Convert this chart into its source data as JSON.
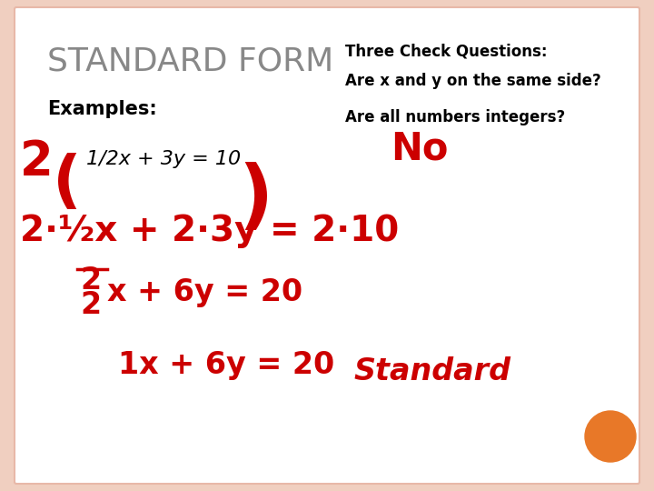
{
  "bg_color": "#ffffff",
  "border_color": "#e8b8a8",
  "slide_bg": "#f0cfc0",
  "title_text": "STANDARD FORM",
  "title_color": "#888888",
  "title_fontsize": 26,
  "examples_text": "Examples:",
  "examples_color": "#000000",
  "examples_fontsize": 15,
  "equation_text": "1/2x + 3y = 10",
  "equation_color": "#000000",
  "equation_fontsize": 16,
  "check_title": "Three Check Questions:",
  "check_q1": "Are x and y on the same side?",
  "check_q2": "Are all numbers integers?",
  "check_color": "#000000",
  "check_fontsize": 12,
  "no_text": "No",
  "no_color": "#cc0000",
  "no_fontsize": 30,
  "handwriting_color": "#cc0000",
  "hw_fontsize_large": 28,
  "hw_fontsize_medium": 24,
  "orange_color": "#e87828"
}
